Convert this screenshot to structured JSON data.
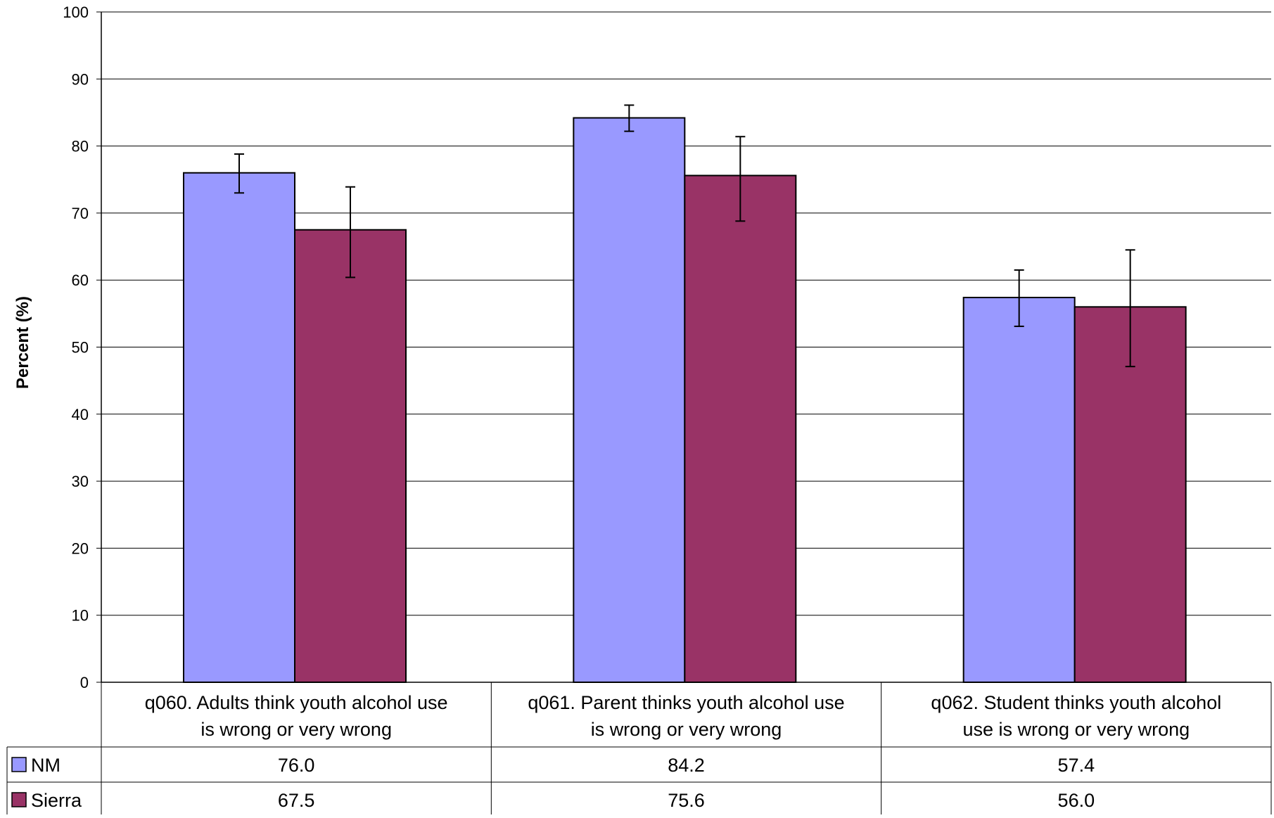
{
  "chart_data": {
    "type": "bar",
    "title": "",
    "ylabel": "Percent (%)",
    "xlabel": "",
    "ylim": [
      0,
      100
    ],
    "yticks": [
      0,
      10,
      20,
      30,
      40,
      50,
      60,
      70,
      80,
      90,
      100
    ],
    "grid": true,
    "legend": "data-table-left",
    "categories": [
      [
        "q060. Adults think youth alcohol use",
        "is wrong or very wrong"
      ],
      [
        "q061. Parent thinks youth alcohol use",
        "is wrong or very wrong"
      ],
      [
        "q062. Student thinks youth alcohol",
        "use is wrong or very wrong"
      ]
    ],
    "series": [
      {
        "name": "NM",
        "color": "#9999ff",
        "values": [
          76.0,
          84.2,
          57.4
        ],
        "value_labels": [
          "76.0",
          "84.2",
          "57.4"
        ],
        "error_low": [
          73.0,
          82.2,
          53.1
        ],
        "error_high": [
          78.8,
          86.1,
          61.5
        ]
      },
      {
        "name": "Sierra",
        "color": "#993366",
        "values": [
          67.5,
          75.6,
          56.0
        ],
        "value_labels": [
          "67.5",
          "75.6",
          "56.0"
        ],
        "error_low": [
          60.4,
          68.8,
          47.1
        ],
        "error_high": [
          73.9,
          81.4,
          64.5
        ]
      }
    ]
  }
}
